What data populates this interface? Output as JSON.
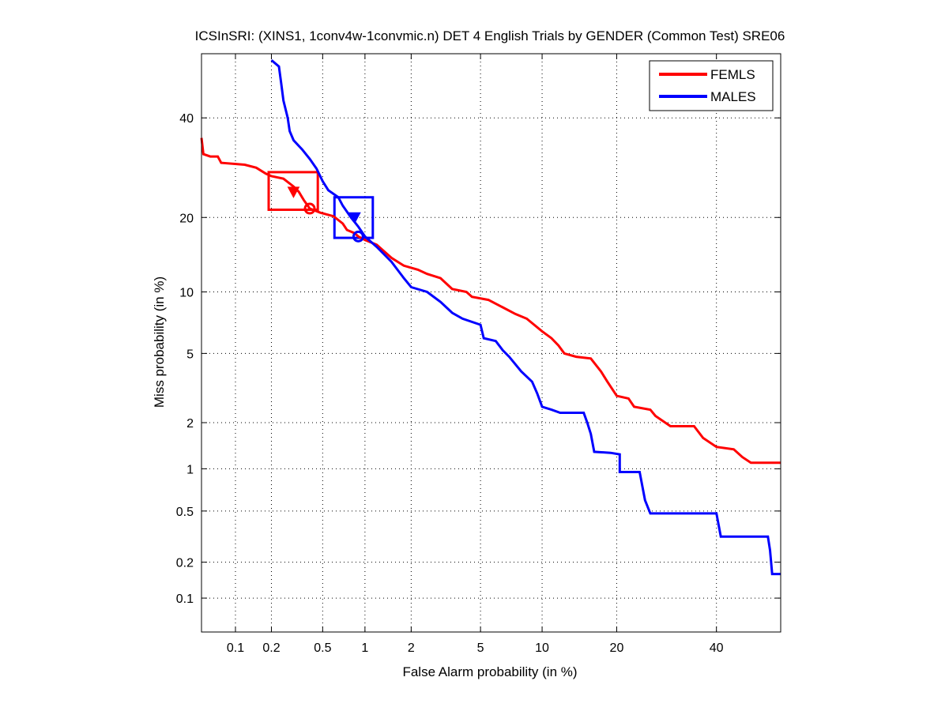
{
  "chart_data": {
    "type": "line",
    "title": "ICSInSRI: (XINS1, 1conv4w-1convmic.n) DET 4 English Trials by GENDER (Common Test) SRE06",
    "xlabel": "False Alarm probability (in %)",
    "ylabel": "Miss probability (in %)",
    "x_scale": "probit",
    "y_scale": "probit",
    "xlim": [
      0.05,
      55
    ],
    "ylim": [
      0.05,
      55
    ],
    "x_ticks": [
      0.1,
      0.2,
      0.5,
      1,
      2,
      5,
      10,
      20,
      40
    ],
    "x_tick_labels": [
      "0.1",
      "0.2",
      "0.5",
      "1",
      "2",
      "5",
      "10",
      "20",
      "40"
    ],
    "y_ticks": [
      0.1,
      0.2,
      0.5,
      1,
      2,
      5,
      10,
      20,
      40
    ],
    "y_tick_labels": [
      "0.1",
      "0.2",
      "0.5",
      "1",
      "2",
      "5",
      "10",
      "20",
      "40"
    ],
    "grid": true,
    "legend_position": "top-right",
    "series": [
      {
        "name": "FEMLS",
        "color": "#ff0000",
        "points": [
          [
            0.05,
            35.5
          ],
          [
            0.052,
            32
          ],
          [
            0.06,
            31.5
          ],
          [
            0.07,
            31.5
          ],
          [
            0.075,
            30.2
          ],
          [
            0.12,
            29.8
          ],
          [
            0.15,
            29.2
          ],
          [
            0.18,
            28.0
          ],
          [
            0.2,
            27.5
          ],
          [
            0.25,
            27.0
          ],
          [
            0.3,
            25.5
          ],
          [
            0.33,
            24.5
          ],
          [
            0.36,
            23.0
          ],
          [
            0.4,
            21.5
          ],
          [
            0.48,
            20.8
          ],
          [
            0.6,
            20.2
          ],
          [
            0.7,
            19.0
          ],
          [
            0.75,
            18.0
          ],
          [
            0.85,
            17.5
          ],
          [
            0.9,
            17.0
          ],
          [
            1.0,
            16.5
          ],
          [
            1.2,
            15.8
          ],
          [
            1.5,
            14.0
          ],
          [
            1.8,
            13.0
          ],
          [
            2.2,
            12.5
          ],
          [
            2.5,
            12.0
          ],
          [
            3.0,
            11.5
          ],
          [
            3.5,
            10.3
          ],
          [
            4.2,
            10.0
          ],
          [
            4.5,
            9.5
          ],
          [
            5.5,
            9.2
          ],
          [
            6.5,
            8.5
          ],
          [
            7.5,
            7.9
          ],
          [
            8.5,
            7.5
          ],
          [
            10,
            6.5
          ],
          [
            11,
            6.0
          ],
          [
            11.8,
            5.5
          ],
          [
            12.5,
            5.0
          ],
          [
            14,
            4.8
          ],
          [
            16,
            4.7
          ],
          [
            17.5,
            4.0
          ],
          [
            18.5,
            3.5
          ],
          [
            20,
            2.9
          ],
          [
            22,
            2.8
          ],
          [
            23,
            2.5
          ],
          [
            26,
            2.4
          ],
          [
            27,
            2.2
          ],
          [
            30,
            1.9
          ],
          [
            35,
            1.9
          ],
          [
            37,
            1.6
          ],
          [
            40,
            1.4
          ],
          [
            44,
            1.35
          ],
          [
            46,
            1.2
          ],
          [
            48,
            1.1
          ],
          [
            55,
            1.1
          ]
        ]
      },
      {
        "name": "MALES",
        "color": "#0000ff",
        "points": [
          [
            0.2,
            53.5
          ],
          [
            0.23,
            52
          ],
          [
            0.24,
            48
          ],
          [
            0.25,
            44
          ],
          [
            0.27,
            40
          ],
          [
            0.28,
            37
          ],
          [
            0.3,
            35
          ],
          [
            0.35,
            33
          ],
          [
            0.4,
            31
          ],
          [
            0.45,
            29
          ],
          [
            0.5,
            26.5
          ],
          [
            0.55,
            24.8
          ],
          [
            0.65,
            23.5
          ],
          [
            0.7,
            22.0
          ],
          [
            0.8,
            20.0
          ],
          [
            0.9,
            18.5
          ],
          [
            1.0,
            17.0
          ],
          [
            1.2,
            15.5
          ],
          [
            1.5,
            13.5
          ],
          [
            1.8,
            11.5
          ],
          [
            2.0,
            10.5
          ],
          [
            2.5,
            10.0
          ],
          [
            3.0,
            9.0
          ],
          [
            3.5,
            8.0
          ],
          [
            4.0,
            7.5
          ],
          [
            5.0,
            7.0
          ],
          [
            5.2,
            6.0
          ],
          [
            6.0,
            5.8
          ],
          [
            6.5,
            5.2
          ],
          [
            7.0,
            4.8
          ],
          [
            8.0,
            4.0
          ],
          [
            9.0,
            3.5
          ],
          [
            9.5,
            3.0
          ],
          [
            10,
            2.5
          ],
          [
            11,
            2.4
          ],
          [
            12,
            2.3
          ],
          [
            15,
            2.3
          ],
          [
            15.5,
            2.0
          ],
          [
            16,
            1.7
          ],
          [
            16.5,
            1.3
          ],
          [
            19,
            1.28
          ],
          [
            20.5,
            1.25
          ],
          [
            20.5,
            0.95
          ],
          [
            24,
            0.95
          ],
          [
            25,
            0.6
          ],
          [
            26,
            0.48
          ],
          [
            40,
            0.48
          ],
          [
            41,
            0.32
          ],
          [
            52,
            0.32
          ],
          [
            52.5,
            0.25
          ],
          [
            53,
            0.16
          ],
          [
            55,
            0.16
          ]
        ]
      }
    ],
    "markers": [
      {
        "series": "FEMLS",
        "shape": "triangle-down",
        "x": 0.3,
        "y": 24.5,
        "color": "#ff0000"
      },
      {
        "series": "FEMLS",
        "shape": "circle",
        "x": 0.4,
        "y": 21.5,
        "color": "#ff0000"
      },
      {
        "series": "MALES",
        "shape": "triangle-down",
        "x": 0.85,
        "y": 20.0,
        "color": "#0000ff"
      },
      {
        "series": "MALES",
        "shape": "circle",
        "x": 0.9,
        "y": 17.0,
        "color": "#0000ff"
      }
    ],
    "confidence_boxes": [
      {
        "series": "FEMLS",
        "x_range": [
          0.19,
          0.46
        ],
        "y_range": [
          21.3,
          28.3
        ],
        "color": "#ff0000"
      },
      {
        "series": "MALES",
        "x_range": [
          0.61,
          1.13
        ],
        "y_range": [
          16.8,
          23.5
        ],
        "color": "#0000ff"
      }
    ]
  }
}
